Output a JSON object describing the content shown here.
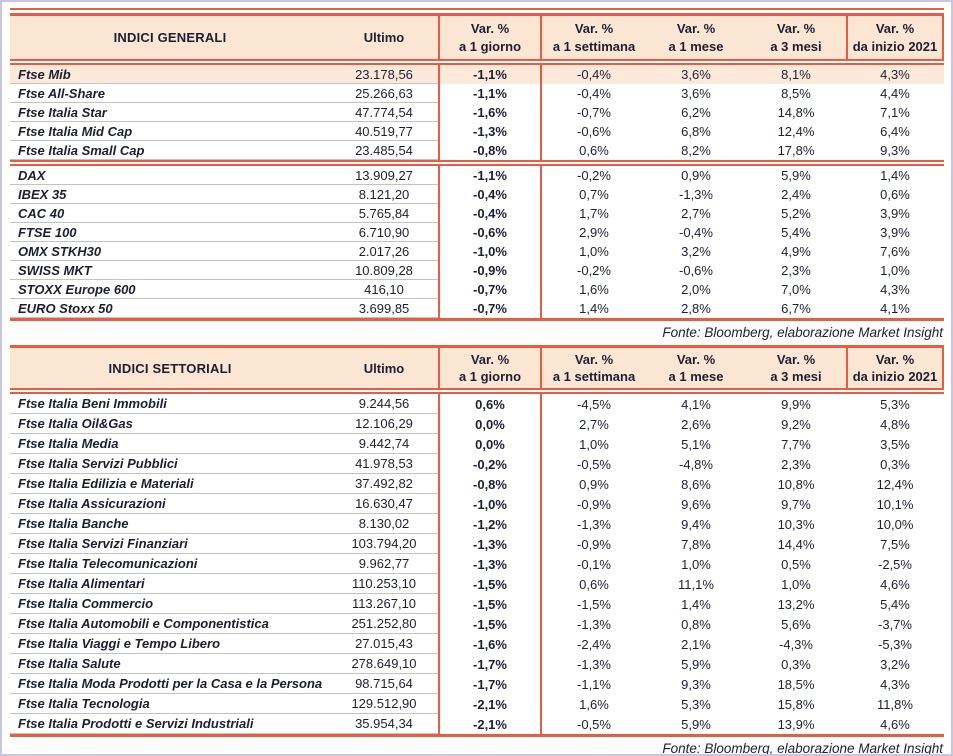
{
  "colors": {
    "accent_red": "#e85d42",
    "header_bg": "#fbe5d3",
    "highlight_row_bg": "#fce9da",
    "text": "#1c1f33",
    "row_divider": "#c2c1c7",
    "page_frame": "#cac5e2"
  },
  "header_labels": {
    "ultimo": "Ultimo",
    "var": "Var. %",
    "periods": [
      "a 1 giorno",
      "a 1 settimana",
      "a 1 mese",
      "a 3 mesi",
      "da inizio 2021"
    ]
  },
  "tables": [
    {
      "title": "INDICI GENERALI",
      "source": "Fonte: Bloomberg, elaborazione Market Insight",
      "groups": [
        {
          "rows": [
            {
              "name": "Ftse Mib",
              "ultimo": "23.178,56",
              "d1": "-1,1%",
              "w1": "-0,4%",
              "m1": "3,6%",
              "m3": "8,1%",
              "ytd": "4,3%",
              "highlight": true
            },
            {
              "name": "Ftse All-Share",
              "ultimo": "25.266,63",
              "d1": "-1,1%",
              "w1": "-0,4%",
              "m1": "3,6%",
              "m3": "8,5%",
              "ytd": "4,4%"
            },
            {
              "name": "Ftse Italia Star",
              "ultimo": "47.774,54",
              "d1": "-1,6%",
              "w1": "-0,7%",
              "m1": "6,2%",
              "m3": "14,8%",
              "ytd": "7,1%"
            },
            {
              "name": "Ftse Italia Mid Cap",
              "ultimo": "40.519,77",
              "d1": "-1,3%",
              "w1": "-0,6%",
              "m1": "6,8%",
              "m3": "12,4%",
              "ytd": "6,4%"
            },
            {
              "name": "Ftse Italia Small Cap",
              "ultimo": "23.485,54",
              "d1": "-0,8%",
              "w1": "0,6%",
              "m1": "8,2%",
              "m3": "17,8%",
              "ytd": "9,3%"
            }
          ]
        },
        {
          "rows": [
            {
              "name": "DAX",
              "ultimo": "13.909,27",
              "d1": "-1,1%",
              "w1": "-0,2%",
              "m1": "0,9%",
              "m3": "5,9%",
              "ytd": "1,4%"
            },
            {
              "name": "IBEX 35",
              "ultimo": "8.121,20",
              "d1": "-0,4%",
              "w1": "0,7%",
              "m1": "-1,3%",
              "m3": "2,4%",
              "ytd": "0,6%"
            },
            {
              "name": "CAC 40",
              "ultimo": "5.765,84",
              "d1": "-0,4%",
              "w1": "1,7%",
              "m1": "2,7%",
              "m3": "5,2%",
              "ytd": "3,9%"
            },
            {
              "name": "FTSE 100",
              "ultimo": "6.710,90",
              "d1": "-0,6%",
              "w1": "2,9%",
              "m1": "-0,4%",
              "m3": "5,4%",
              "ytd": "3,9%"
            },
            {
              "name": "OMX STKH30",
              "ultimo": "2.017,26",
              "d1": "-1,0%",
              "w1": "1,0%",
              "m1": "3,2%",
              "m3": "4,9%",
              "ytd": "7,6%"
            },
            {
              "name": "SWISS MKT",
              "ultimo": "10.809,28",
              "d1": "-0,9%",
              "w1": "-0,2%",
              "m1": "-0,6%",
              "m3": "2,3%",
              "ytd": "1,0%"
            },
            {
              "name": "STOXX Europe 600",
              "ultimo": "416,10",
              "d1": "-0,7%",
              "w1": "1,6%",
              "m1": "2,0%",
              "m3": "7,0%",
              "ytd": "4,3%"
            },
            {
              "name": "EURO Stoxx 50",
              "ultimo": "3.699,85",
              "d1": "-0,7%",
              "w1": "1,4%",
              "m1": "2,8%",
              "m3": "6,7%",
              "ytd": "4,1%"
            }
          ]
        }
      ]
    },
    {
      "title": "INDICI SETTORIALI",
      "source": "Fonte: Bloomberg, elaborazione Market Insight",
      "groups": [
        {
          "rows": [
            {
              "name": "Ftse Italia Beni Immobili",
              "ultimo": "9.244,56",
              "d1": "0,6%",
              "w1": "-4,5%",
              "m1": "4,1%",
              "m3": "9,9%",
              "ytd": "5,3%"
            },
            {
              "name": "Ftse Italia Oil&Gas",
              "ultimo": "12.106,29",
              "d1": "0,0%",
              "w1": "2,7%",
              "m1": "2,6%",
              "m3": "9,2%",
              "ytd": "4,8%"
            },
            {
              "name": "Ftse Italia Media",
              "ultimo": "9.442,74",
              "d1": "0,0%",
              "w1": "1,0%",
              "m1": "5,1%",
              "m3": "7,7%",
              "ytd": "3,5%"
            },
            {
              "name": "Ftse Italia Servizi Pubblici",
              "ultimo": "41.978,53",
              "d1": "-0,2%",
              "w1": "-0,5%",
              "m1": "-4,8%",
              "m3": "2,3%",
              "ytd": "0,3%"
            },
            {
              "name": "Ftse Italia Edilizia e Materiali",
              "ultimo": "37.492,82",
              "d1": "-0,8%",
              "w1": "0,9%",
              "m1": "8,6%",
              "m3": "10,8%",
              "ytd": "12,4%"
            },
            {
              "name": "Ftse Italia Assicurazioni",
              "ultimo": "16.630,47",
              "d1": "-1,0%",
              "w1": "-0,9%",
              "m1": "9,6%",
              "m3": "9,7%",
              "ytd": "10,1%"
            },
            {
              "name": "Ftse Italia Banche",
              "ultimo": "8.130,02",
              "d1": "-1,2%",
              "w1": "-1,3%",
              "m1": "9,4%",
              "m3": "10,3%",
              "ytd": "10,0%"
            },
            {
              "name": "Ftse Italia Servizi Finanziari",
              "ultimo": "103.794,20",
              "d1": "-1,3%",
              "w1": "-0,9%",
              "m1": "7,8%",
              "m3": "14,4%",
              "ytd": "7,5%"
            },
            {
              "name": "Ftse Italia Telecomunicazioni",
              "ultimo": "9.962,77",
              "d1": "-1,3%",
              "w1": "-0,1%",
              "m1": "1,0%",
              "m3": "0,5%",
              "ytd": "-2,5%"
            },
            {
              "name": "Ftse Italia Alimentari",
              "ultimo": "110.253,10",
              "d1": "-1,5%",
              "w1": "0,6%",
              "m1": "11,1%",
              "m3": "1,0%",
              "ytd": "4,6%"
            },
            {
              "name": "Ftse Italia Commercio",
              "ultimo": "113.267,10",
              "d1": "-1,5%",
              "w1": "-1,5%",
              "m1": "1,4%",
              "m3": "13,2%",
              "ytd": "5,4%"
            },
            {
              "name": "Ftse Italia Automobili e Componentistica",
              "ultimo": "251.252,80",
              "d1": "-1,5%",
              "w1": "-1,3%",
              "m1": "0,8%",
              "m3": "5,6%",
              "ytd": "-3,7%"
            },
            {
              "name": "Ftse Italia Viaggi e Tempo Libero",
              "ultimo": "27.015,43",
              "d1": "-1,6%",
              "w1": "-2,4%",
              "m1": "2,1%",
              "m3": "-4,3%",
              "ytd": "-5,3%"
            },
            {
              "name": "Ftse Italia Salute",
              "ultimo": "278.649,10",
              "d1": "-1,7%",
              "w1": "-1,3%",
              "m1": "5,9%",
              "m3": "0,3%",
              "ytd": "3,2%"
            },
            {
              "name": "Ftse Italia Moda Prodotti per la Casa e la Persona",
              "ultimo": "98.715,64",
              "d1": "-1,7%",
              "w1": "-1,1%",
              "m1": "9,3%",
              "m3": "18,5%",
              "ytd": "4,3%"
            },
            {
              "name": "Ftse Italia Tecnologia",
              "ultimo": "129.512,90",
              "d1": "-2,1%",
              "w1": "1,6%",
              "m1": "5,3%",
              "m3": "15,8%",
              "ytd": "11,8%"
            },
            {
              "name": "Ftse Italia Prodotti e Servizi Industriali",
              "ultimo": "35.954,34",
              "d1": "-2,1%",
              "w1": "-0,5%",
              "m1": "5,9%",
              "m3": "13,9%",
              "ytd": "4,6%"
            }
          ]
        }
      ]
    }
  ]
}
